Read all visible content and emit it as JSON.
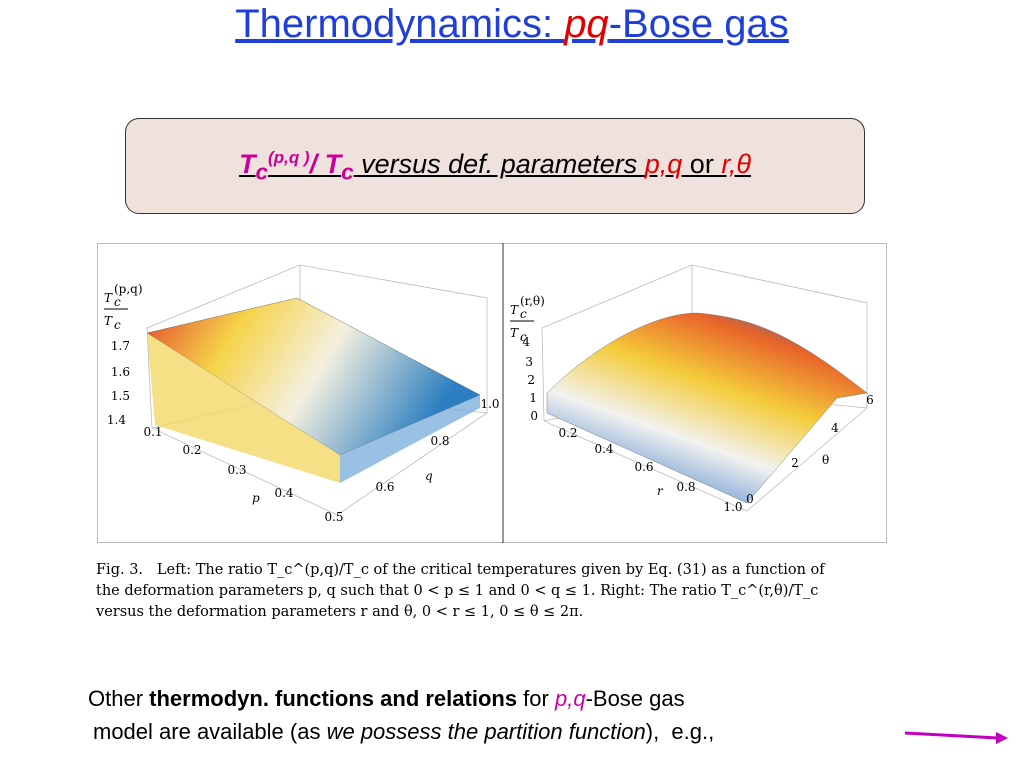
{
  "title": {
    "lead": "Thermodynamics:  ",
    "italic": "pq",
    "tail": "-Bose gas"
  },
  "box": {
    "t1": "T",
    "s1": "c",
    "sup": "(p,q )",
    "slash": "/ ",
    "t2": "T",
    "s2": "c",
    "mid": " versus def. parameters ",
    "pq": "p,q ",
    "or": "or ",
    "rt": "r,θ"
  },
  "figure": {
    "left": {
      "ylabel": {
        "num": "T",
        "num_sub": "c",
        "num_sup": "(p,q)",
        "den": "T",
        "den_sub": "c"
      },
      "zticks": [
        "1.7",
        "1.6",
        "1.5",
        "1.4"
      ],
      "xticks": [
        "0.1",
        "0.2",
        "0.3",
        "0.4",
        "0.5"
      ],
      "yticks": [
        "0.6",
        "0.8",
        "1.0"
      ],
      "xlabel": "p",
      "ylabel2": "q"
    },
    "right": {
      "ylabel": {
        "num": "T",
        "num_sub": "c",
        "num_sup": "(r,θ)",
        "den": "T",
        "den_sub": "c"
      },
      "zticks": [
        "4",
        "3",
        "2",
        "1",
        "0"
      ],
      "xticks": [
        "0.2",
        "0.4",
        "0.6",
        "0.8",
        "1.0"
      ],
      "yticks": [
        "0",
        "2",
        "4",
        "6"
      ],
      "xlabel": "r",
      "ylabel2": "θ"
    },
    "caption": [
      "Fig. 3.   Left: The ratio T_c^(p,q)/T_c of the critical temperatures given by Eq. (31) as a function of",
      "the deformation parameters p, q such that 0 < p ≤ 1 and 0 < q ≤ 1. Right: The ratio T_c^(r,θ)/T_c",
      "versus the deformation parameters r and θ, 0 < r ≤ 1, 0 ≤ θ ≤ 2π."
    ]
  },
  "footer": {
    "line1": {
      "a": "Other ",
      "b": "thermodyn. functions and relations",
      "c": " for ",
      "d": "p,q",
      "e": "-Bose gas"
    },
    "line2": {
      "a": "model are available (as ",
      "b": "we possess the partition function",
      "c": "),  e.g.,"
    }
  }
}
